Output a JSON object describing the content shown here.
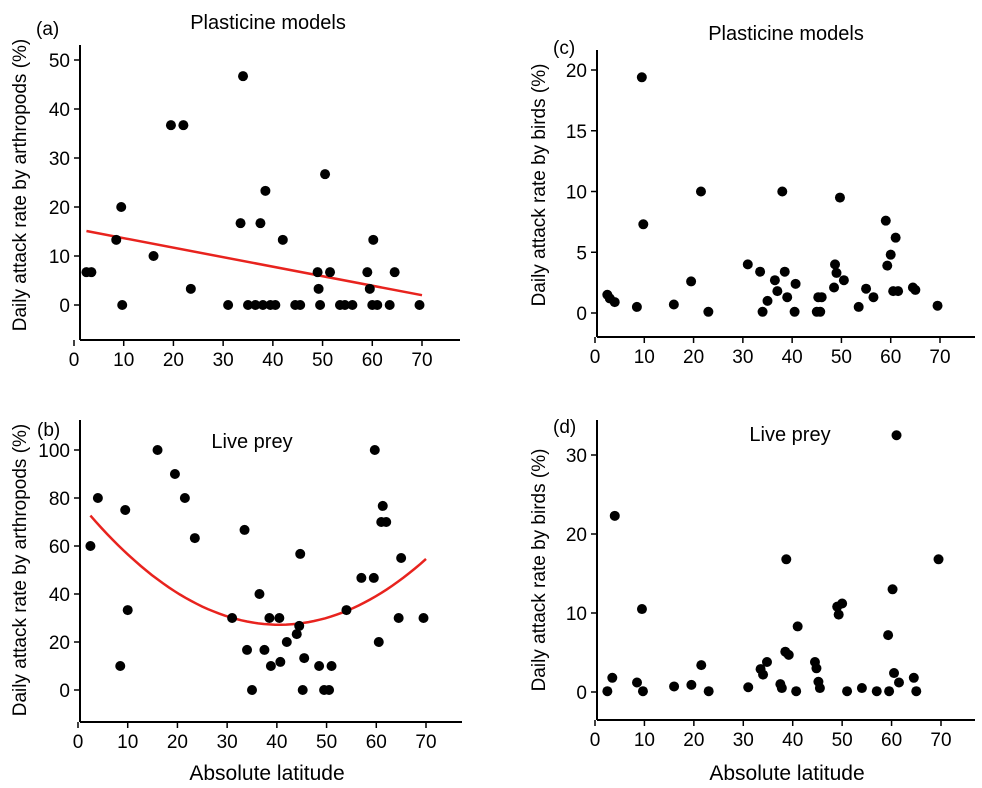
{
  "chart_data": [
    {
      "panel": "(a)",
      "type": "scatter",
      "title": "Plasticine models",
      "xlabel": "",
      "ylabel": "Daily attack rate by arthropods (%)",
      "xlim": [
        0,
        75
      ],
      "ylim": [
        -3,
        52
      ],
      "xticks": [
        0,
        10,
        20,
        30,
        40,
        50,
        60,
        70
      ],
      "yticks": [
        0,
        10,
        20,
        30,
        40,
        50
      ],
      "fit": {
        "kind": "linear",
        "color": "#e8231e",
        "x": [
          2.5,
          70
        ],
        "y": [
          15.1,
          2.0
        ]
      },
      "points": [
        [
          2.5,
          6.7
        ],
        [
          3.5,
          6.7
        ],
        [
          8.5,
          13.3
        ],
        [
          9.5,
          20
        ],
        [
          9.7,
          0
        ],
        [
          16,
          10
        ],
        [
          19.5,
          36.7
        ],
        [
          22,
          36.7
        ],
        [
          23.5,
          3.3
        ],
        [
          31,
          0
        ],
        [
          33.5,
          16.7
        ],
        [
          34,
          46.7
        ],
        [
          35,
          0
        ],
        [
          36.5,
          0
        ],
        [
          37.5,
          16.7
        ],
        [
          38,
          0
        ],
        [
          38.5,
          23.3
        ],
        [
          39.5,
          0
        ],
        [
          40.5,
          0
        ],
        [
          42,
          13.3
        ],
        [
          44.5,
          0
        ],
        [
          45.5,
          0
        ],
        [
          49,
          6.7
        ],
        [
          49.2,
          3.3
        ],
        [
          49.5,
          0
        ],
        [
          50.5,
          26.7
        ],
        [
          51.5,
          6.7
        ],
        [
          53.5,
          0
        ],
        [
          54.5,
          0
        ],
        [
          56,
          0
        ],
        [
          59,
          6.7
        ],
        [
          59.5,
          3.3
        ],
        [
          60.2,
          13.3
        ],
        [
          60,
          0
        ],
        [
          61,
          0
        ],
        [
          63.5,
          0
        ],
        [
          64.5,
          6.7
        ],
        [
          69.5,
          0
        ]
      ]
    },
    {
      "panel": "(b)",
      "type": "scatter",
      "title": "Live prey",
      "xlabel": "Absolute latitude",
      "ylabel": "Daily attack rate by arthropods (%)",
      "xlim": [
        0,
        75
      ],
      "ylim": [
        -5,
        112
      ],
      "xticks": [
        0,
        10,
        20,
        30,
        40,
        50,
        60,
        70
      ],
      "yticks": [
        0,
        20,
        40,
        60,
        80,
        100
      ],
      "fit": {
        "kind": "quadratic",
        "color": "#e8231e",
        "x": [
          2.5,
          70
        ],
        "a": 0.0315,
        "vx": 40.5,
        "vy": 27.2
      },
      "points": [
        [
          2.5,
          60
        ],
        [
          4,
          80
        ],
        [
          8.5,
          10
        ],
        [
          9.5,
          75
        ],
        [
          10,
          33.3
        ],
        [
          16,
          100
        ],
        [
          19.5,
          90
        ],
        [
          21.5,
          80
        ],
        [
          23.5,
          63.3
        ],
        [
          31,
          30
        ],
        [
          33.5,
          66.7
        ],
        [
          34,
          16.7
        ],
        [
          35,
          0
        ],
        [
          36.5,
          40
        ],
        [
          37.5,
          16.7
        ],
        [
          38.5,
          30
        ],
        [
          38.8,
          10
        ],
        [
          40.5,
          30
        ],
        [
          40.7,
          11.7
        ],
        [
          42,
          20
        ],
        [
          44,
          23.3
        ],
        [
          44.5,
          26.7
        ],
        [
          44.7,
          56.7
        ],
        [
          45.5,
          13.3
        ],
        [
          45.2,
          0
        ],
        [
          48.5,
          10
        ],
        [
          49.5,
          0
        ],
        [
          50.5,
          0
        ],
        [
          51,
          10
        ],
        [
          54,
          33.3
        ],
        [
          57,
          46.7
        ],
        [
          59.7,
          100
        ],
        [
          59.5,
          46.7
        ],
        [
          60.5,
          20
        ],
        [
          61,
          70
        ],
        [
          61.3,
          76.7
        ],
        [
          62,
          70
        ],
        [
          64.5,
          30
        ],
        [
          65,
          55
        ],
        [
          69.5,
          30
        ]
      ]
    },
    {
      "panel": "(c)",
      "type": "scatter",
      "title": "Plasticine models",
      "xlabel": "",
      "ylabel": "Daily attack rate by birds (%)",
      "xlim": [
        0,
        75
      ],
      "ylim": [
        -2,
        21
      ],
      "xticks": [
        0,
        10,
        20,
        30,
        40,
        50,
        60,
        70
      ],
      "yticks": [
        0,
        5,
        10,
        15,
        20
      ],
      "points": [
        [
          2.5,
          1.5
        ],
        [
          3,
          1.2
        ],
        [
          4,
          0.9
        ],
        [
          8.5,
          0.5
        ],
        [
          9.5,
          19.4
        ],
        [
          9.8,
          7.3
        ],
        [
          16,
          0.7
        ],
        [
          19.5,
          2.6
        ],
        [
          21.5,
          10
        ],
        [
          23,
          0.1
        ],
        [
          31,
          4
        ],
        [
          33.5,
          3.4
        ],
        [
          34,
          0.1
        ],
        [
          35,
          1
        ],
        [
          36.5,
          2.7
        ],
        [
          37,
          1.8
        ],
        [
          38,
          10
        ],
        [
          38.5,
          3.4
        ],
        [
          39,
          1.3
        ],
        [
          40.5,
          0.1
        ],
        [
          40.7,
          2.4
        ],
        [
          45,
          0.1
        ],
        [
          45.3,
          1.3
        ],
        [
          45.7,
          0.1
        ],
        [
          46,
          1.3
        ],
        [
          48.5,
          2.1
        ],
        [
          48.7,
          4
        ],
        [
          49,
          3.3
        ],
        [
          49.7,
          9.5
        ],
        [
          50.5,
          2.7
        ],
        [
          53.5,
          0.5
        ],
        [
          55,
          2
        ],
        [
          56.5,
          1.3
        ],
        [
          59,
          7.6
        ],
        [
          59.3,
          3.9
        ],
        [
          60,
          4.8
        ],
        [
          60.5,
          1.8
        ],
        [
          61,
          6.2
        ],
        [
          61.5,
          1.8
        ],
        [
          64.5,
          2.1
        ],
        [
          65,
          1.9
        ],
        [
          69.5,
          0.6
        ]
      ]
    },
    {
      "panel": "(d)",
      "type": "scatter",
      "title": "Live prey",
      "xlabel": "Absolute latitude",
      "ylabel": "Daily attack rate by birds (%)",
      "xlim": [
        0,
        75
      ],
      "ylim": [
        -2,
        34.5
      ],
      "xticks": [
        0,
        10,
        20,
        30,
        40,
        50,
        60,
        70
      ],
      "yticks": [
        0,
        10,
        20,
        30
      ],
      "points": [
        [
          2.5,
          0.1
        ],
        [
          3.5,
          1.8
        ],
        [
          4,
          22.3
        ],
        [
          8.5,
          1.2
        ],
        [
          9.5,
          10.5
        ],
        [
          9.7,
          0.1
        ],
        [
          16,
          0.7
        ],
        [
          19.5,
          0.9
        ],
        [
          21.5,
          3.4
        ],
        [
          23,
          0.1
        ],
        [
          31,
          0.6
        ],
        [
          33.5,
          2.9
        ],
        [
          34,
          2.2
        ],
        [
          34.8,
          3.8
        ],
        [
          37.5,
          1
        ],
        [
          37.8,
          0.5
        ],
        [
          38.5,
          5.1
        ],
        [
          38.7,
          16.8
        ],
        [
          39.2,
          4.7
        ],
        [
          40.7,
          0.1
        ],
        [
          41,
          8.3
        ],
        [
          44.5,
          3.8
        ],
        [
          44.8,
          3
        ],
        [
          45.2,
          1.3
        ],
        [
          45.5,
          0.5
        ],
        [
          49,
          10.8
        ],
        [
          49.3,
          9.8
        ],
        [
          50,
          11.2
        ],
        [
          51,
          0.1
        ],
        [
          54,
          0.5
        ],
        [
          57,
          0.1
        ],
        [
          59.3,
          7.2
        ],
        [
          59.5,
          0.1
        ],
        [
          60.2,
          13
        ],
        [
          60.5,
          2.4
        ],
        [
          61,
          32.5
        ],
        [
          61.5,
          1.2
        ],
        [
          64.5,
          1.8
        ],
        [
          65,
          0.1
        ],
        [
          69.5,
          16.8
        ]
      ]
    }
  ]
}
